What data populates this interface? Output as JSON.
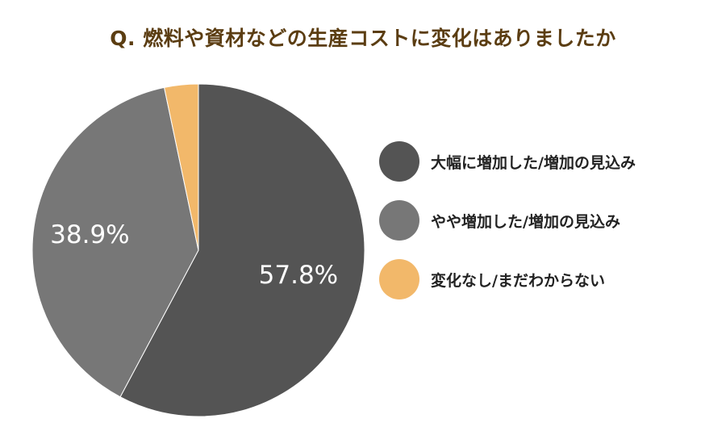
{
  "title": "Q. 燃料や資材などの生産コストに変化はありましたか",
  "colors": {
    "title": "#5b3d12",
    "slices": [
      "#545454",
      "#777777",
      "#f2b86a"
    ],
    "label_text": "#ffffff"
  },
  "chart_data": {
    "type": "pie",
    "title": "Q. 燃料や資材などの生産コストに変化はありましたか",
    "slices": [
      {
        "label": "大幅に増加した/増加の見込み",
        "value": 57.8,
        "display": "57.8%"
      },
      {
        "label": "やや増加した/増加の見込み",
        "value": 38.9,
        "display": "38.9%"
      },
      {
        "label": "変化なし/まだわからない",
        "value": 3.3,
        "display": ""
      }
    ],
    "start": "12 o'clock",
    "direction": "clockwise",
    "legend_position": "right"
  }
}
